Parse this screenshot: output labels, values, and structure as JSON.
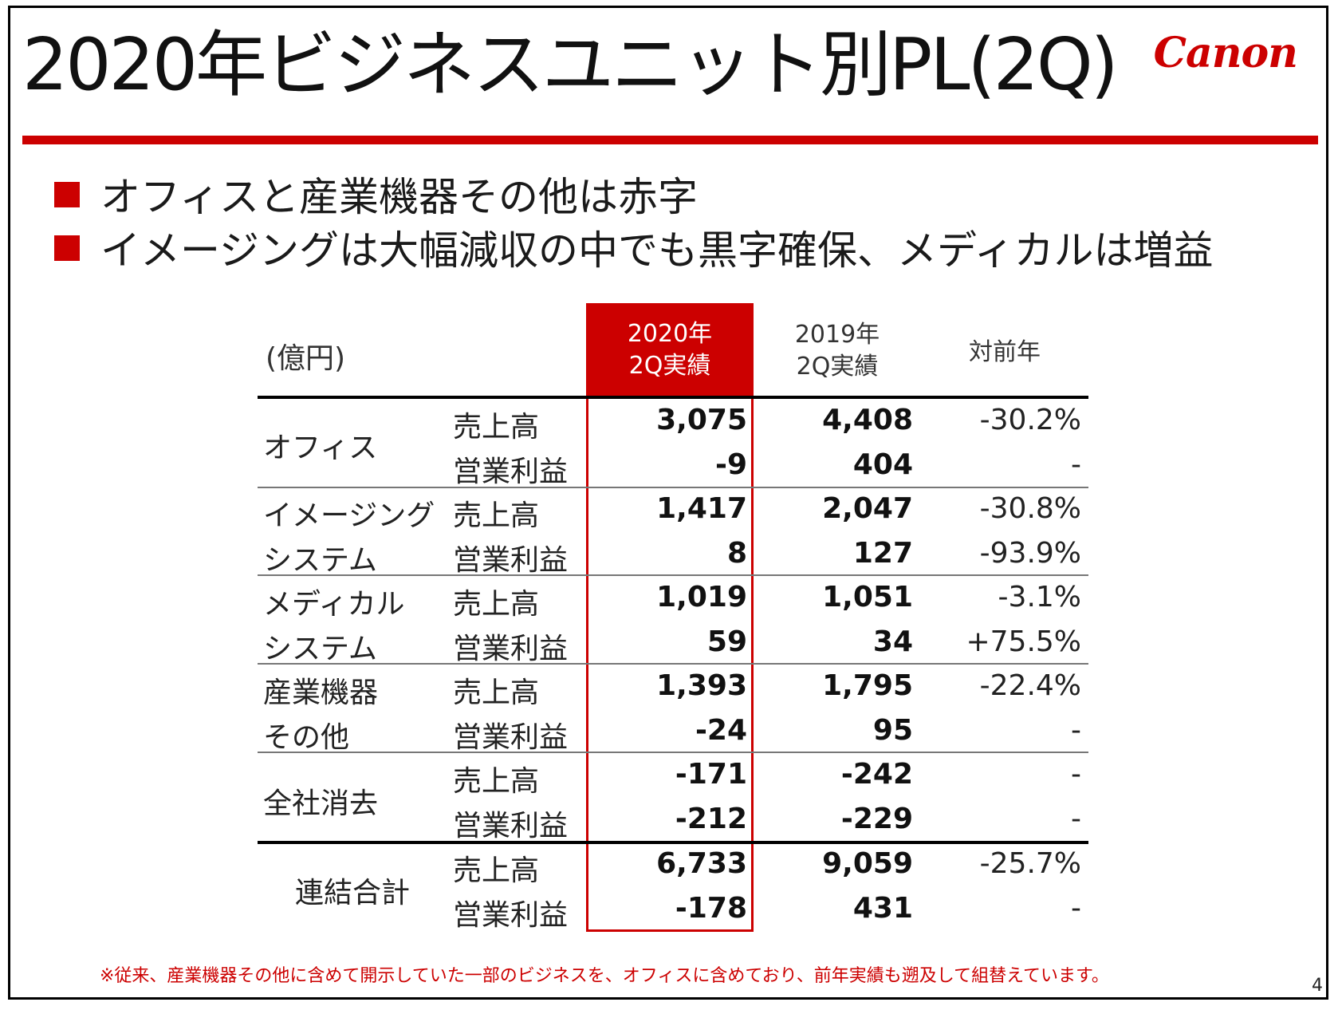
{
  "title": "2020年ビジネスユニット別PL(2Q)",
  "logo": "Canon",
  "bullets": [
    "オフィスと産業機器その他は赤字",
    "イメージングは大幅減収の中でも黒字確保、メディカルは増益"
  ],
  "table": {
    "unit": "(億円)",
    "headers": {
      "current_line1": "2020年",
      "current_line2": "2Q実績",
      "prior_line1": "2019年",
      "prior_line2": "2Q実績",
      "yoy": "対前年"
    },
    "segments": [
      {
        "name_line1": "オフィス",
        "name_line2": "",
        "rows": [
          {
            "metric": "売上高",
            "current": "3,075",
            "prior": "4,408",
            "yoy": "-30.2%"
          },
          {
            "metric": "営業利益",
            "current": "-9",
            "prior": "404",
            "yoy": "-"
          }
        ]
      },
      {
        "name_line1": "イメージング",
        "name_line2": "システム",
        "rows": [
          {
            "metric": "売上高",
            "current": "1,417",
            "prior": "2,047",
            "yoy": "-30.8%"
          },
          {
            "metric": "営業利益",
            "current": "8",
            "prior": "127",
            "yoy": "-93.9%"
          }
        ]
      },
      {
        "name_line1": "メディカル",
        "name_line2": "システム",
        "rows": [
          {
            "metric": "売上高",
            "current": "1,019",
            "prior": "1,051",
            "yoy": "-3.1%"
          },
          {
            "metric": "営業利益",
            "current": "59",
            "prior": "34",
            "yoy": "+75.5%"
          }
        ]
      },
      {
        "name_line1": "産業機器",
        "name_line2": "その他",
        "rows": [
          {
            "metric": "売上高",
            "current": "1,393",
            "prior": "1,795",
            "yoy": "-22.4%"
          },
          {
            "metric": "営業利益",
            "current": "-24",
            "prior": "95",
            "yoy": "-"
          }
        ]
      },
      {
        "name_line1": "全社消去",
        "name_line2": "",
        "rows": [
          {
            "metric": "売上高",
            "current": "-171",
            "prior": "-242",
            "yoy": "-"
          },
          {
            "metric": "営業利益",
            "current": "-212",
            "prior": "-229",
            "yoy": "-"
          }
        ]
      },
      {
        "name_line1": "連結合計",
        "name_line2": "",
        "rows": [
          {
            "metric": "売上高",
            "current": "6,733",
            "prior": "9,059",
            "yoy": "-25.7%"
          },
          {
            "metric": "営業利益",
            "current": "-178",
            "prior": "431",
            "yoy": "-"
          }
        ]
      }
    ]
  },
  "footnote": "※従来、産業機器その他に含めて開示していた一部のビジネスを、オフィスに含めており、前年実績も遡及して組替えています。",
  "page_number": "4",
  "colors": {
    "accent": "#cc0000",
    "text": "#1a1a1a"
  }
}
